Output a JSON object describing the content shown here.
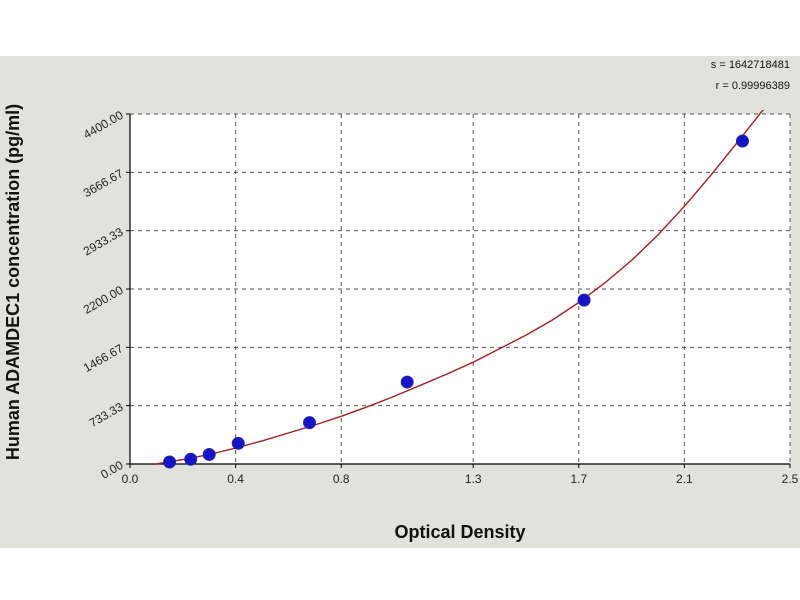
{
  "chart_data": {
    "type": "scatter",
    "xlabel": "Optical Density",
    "ylabel": "Human ADAMDEC1 concentration (pg/ml)",
    "xlim": [
      0.0,
      2.5
    ],
    "ylim": [
      0.0,
      4400.0
    ],
    "x_ticks": [
      0.0,
      0.4,
      0.8,
      1.3,
      1.7,
      2.1,
      2.5
    ],
    "x_tick_labels": [
      "0.0",
      "0.4",
      "0.8",
      "1.3",
      "1.7",
      "2.1",
      "2.5"
    ],
    "y_ticks": [
      0,
      733.33,
      1466.67,
      2200,
      2933.33,
      3666.67,
      4400
    ],
    "y_tick_labels": [
      "0.00",
      "733.33",
      "1466.67",
      "2200.00",
      "2933.33",
      "3666.67",
      "4400.00"
    ],
    "grid": true,
    "annotations": [
      "s = 1642718481",
      "r = 0.99996389"
    ],
    "points": {
      "x": [
        0.15,
        0.23,
        0.3,
        0.41,
        0.68,
        1.05,
        1.72,
        2.32
      ],
      "y": [
        25,
        60,
        120,
        260,
        520,
        1030,
        2060,
        4060
      ]
    },
    "fit_curve": {
      "x": [
        0.1,
        0.2,
        0.3,
        0.4,
        0.5,
        0.6,
        0.7,
        0.8,
        0.9,
        1.0,
        1.1,
        1.2,
        1.3,
        1.4,
        1.5,
        1.6,
        1.7,
        1.8,
        1.9,
        2.0,
        2.1,
        2.2,
        2.3,
        2.4,
        2.44
      ],
      "y": [
        0,
        55,
        120,
        200,
        290,
        390,
        490,
        600,
        720,
        850,
        990,
        1130,
        1280,
        1450,
        1620,
        1810,
        2030,
        2280,
        2560,
        2880,
        3240,
        3630,
        4040,
        4460,
        4650
      ]
    },
    "colors": {
      "point_fill": "#1414c8",
      "point_stroke": "#2a2a90",
      "curve": "#a02020",
      "grid": "#555555",
      "background": "#e2e2dc",
      "plot_background": "#ffffff"
    }
  }
}
